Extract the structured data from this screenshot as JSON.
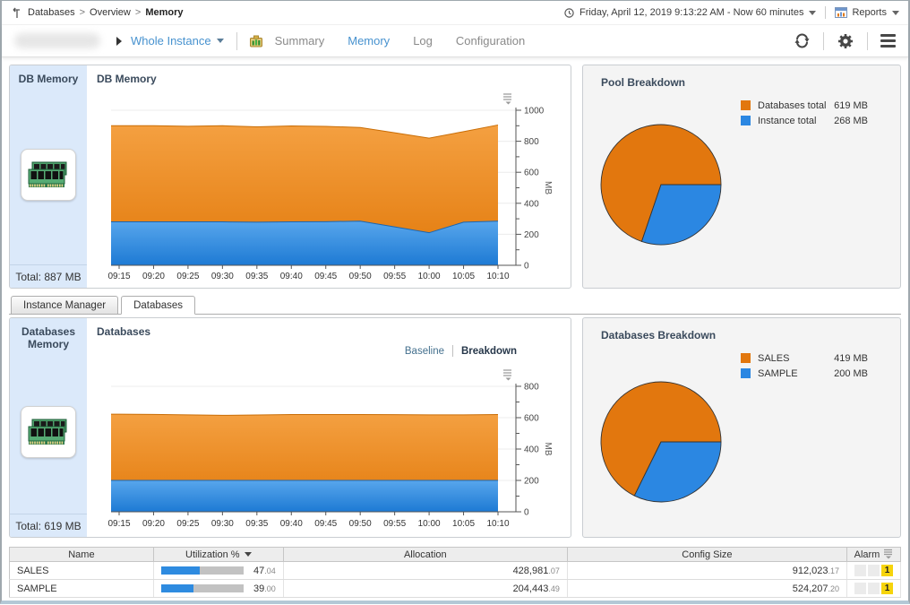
{
  "breadcrumb": {
    "items": [
      "Databases",
      "Overview",
      "Memory"
    ]
  },
  "timebar": {
    "range": "Friday, April 12, 2019 9:13:22 AM - Now 60 minutes",
    "reports_label": "Reports"
  },
  "toolbar": {
    "scope_label": "Whole Instance",
    "nav": {
      "summary": "Summary",
      "memory": "Memory",
      "log": "Log",
      "configuration": "Configuration"
    },
    "active_nav": "Memory"
  },
  "db_memory": {
    "card_title": "DB Memory",
    "total": "Total: 887 MB",
    "chart_title": "DB Memory"
  },
  "pool_breakdown": {
    "title": "Pool Breakdown",
    "legend": [
      {
        "label": "Databases total",
        "value": "619 MB",
        "color": "#e2770e"
      },
      {
        "label": "Instance total",
        "value": "268 MB",
        "color": "#2b87e2"
      }
    ]
  },
  "tabs": {
    "items": [
      "Instance Manager",
      "Databases"
    ],
    "active": "Databases"
  },
  "databases_memory": {
    "card_title": "Databases Memory",
    "total": "Total: 619 MB",
    "chart_title": "Databases",
    "toggle": {
      "baseline": "Baseline",
      "breakdown": "Breakdown",
      "active": "Breakdown"
    }
  },
  "databases_breakdown": {
    "title": "Databases Breakdown",
    "legend": [
      {
        "label": "SALES",
        "value": "419 MB",
        "color": "#e2770e"
      },
      {
        "label": "SAMPLE",
        "value": "200 MB",
        "color": "#2b87e2"
      }
    ]
  },
  "table": {
    "columns": {
      "name": "Name",
      "utilization": "Utilization %",
      "allocation": "Allocation",
      "config_size": "Config Size",
      "alarm": "Alarm"
    },
    "sorted_by": "Utilization %",
    "rows": [
      {
        "name": "SALES",
        "utilization": "47.04",
        "allocation": "428,981.07",
        "config_size": "912,023.17",
        "alarm_count": "1"
      },
      {
        "name": "SAMPLE",
        "utilization": "39.00",
        "allocation": "204,443.49",
        "config_size": "524,207.20",
        "alarm_count": "1"
      }
    ]
  },
  "chart_data": [
    {
      "id": "db_memory_area",
      "type": "area",
      "stacked": true,
      "title": "DB Memory",
      "x": [
        "09:15",
        "09:20",
        "09:25",
        "09:30",
        "09:35",
        "09:40",
        "09:45",
        "09:50",
        "09:55",
        "10:00",
        "10:05",
        "10:10"
      ],
      "series": [
        {
          "name": "Instance total",
          "color": "#2f8ae2",
          "values": [
            280,
            280,
            280,
            280,
            278,
            280,
            281,
            285,
            248,
            210,
            278,
            285
          ]
        },
        {
          "name": "Databases total",
          "color": "#e8820f",
          "values": [
            620,
            620,
            617,
            620,
            615,
            619,
            615,
            604,
            607,
            610,
            584,
            620
          ]
        }
      ],
      "ylim": [
        0,
        1000
      ],
      "ytick_step": 200,
      "yminor_step": 100,
      "ylabel": "MB"
    },
    {
      "id": "pool_pie",
      "type": "pie",
      "title": "Pool Breakdown",
      "labels": [
        "Databases total",
        "Instance total"
      ],
      "values": [
        619,
        268
      ],
      "unit": "MB",
      "colors": [
        "#e2770e",
        "#2b87e2"
      ]
    },
    {
      "id": "databases_area",
      "type": "area",
      "stacked": true,
      "title": "Databases",
      "x": [
        "09:15",
        "09:20",
        "09:25",
        "09:30",
        "09:35",
        "09:40",
        "09:45",
        "09:50",
        "09:55",
        "10:00",
        "10:05",
        "10:10"
      ],
      "series": [
        {
          "name": "SAMPLE",
          "color": "#2f8ae2",
          "values": [
            200,
            200,
            200,
            200,
            200,
            200,
            200,
            200,
            200,
            200,
            200,
            200
          ]
        },
        {
          "name": "SALES",
          "color": "#e8820f",
          "values": [
            422,
            421,
            418,
            415,
            417,
            420,
            420,
            420,
            419,
            418,
            418,
            420
          ]
        }
      ],
      "ylim": [
        0,
        800
      ],
      "ytick_step": 200,
      "yminor_step": 100,
      "ylabel": "MB"
    },
    {
      "id": "databases_pie",
      "type": "pie",
      "title": "Databases Breakdown",
      "labels": [
        "SALES",
        "SAMPLE"
      ],
      "values": [
        419,
        200
      ],
      "unit": "MB",
      "colors": [
        "#e2770e",
        "#2b87e2"
      ]
    }
  ]
}
